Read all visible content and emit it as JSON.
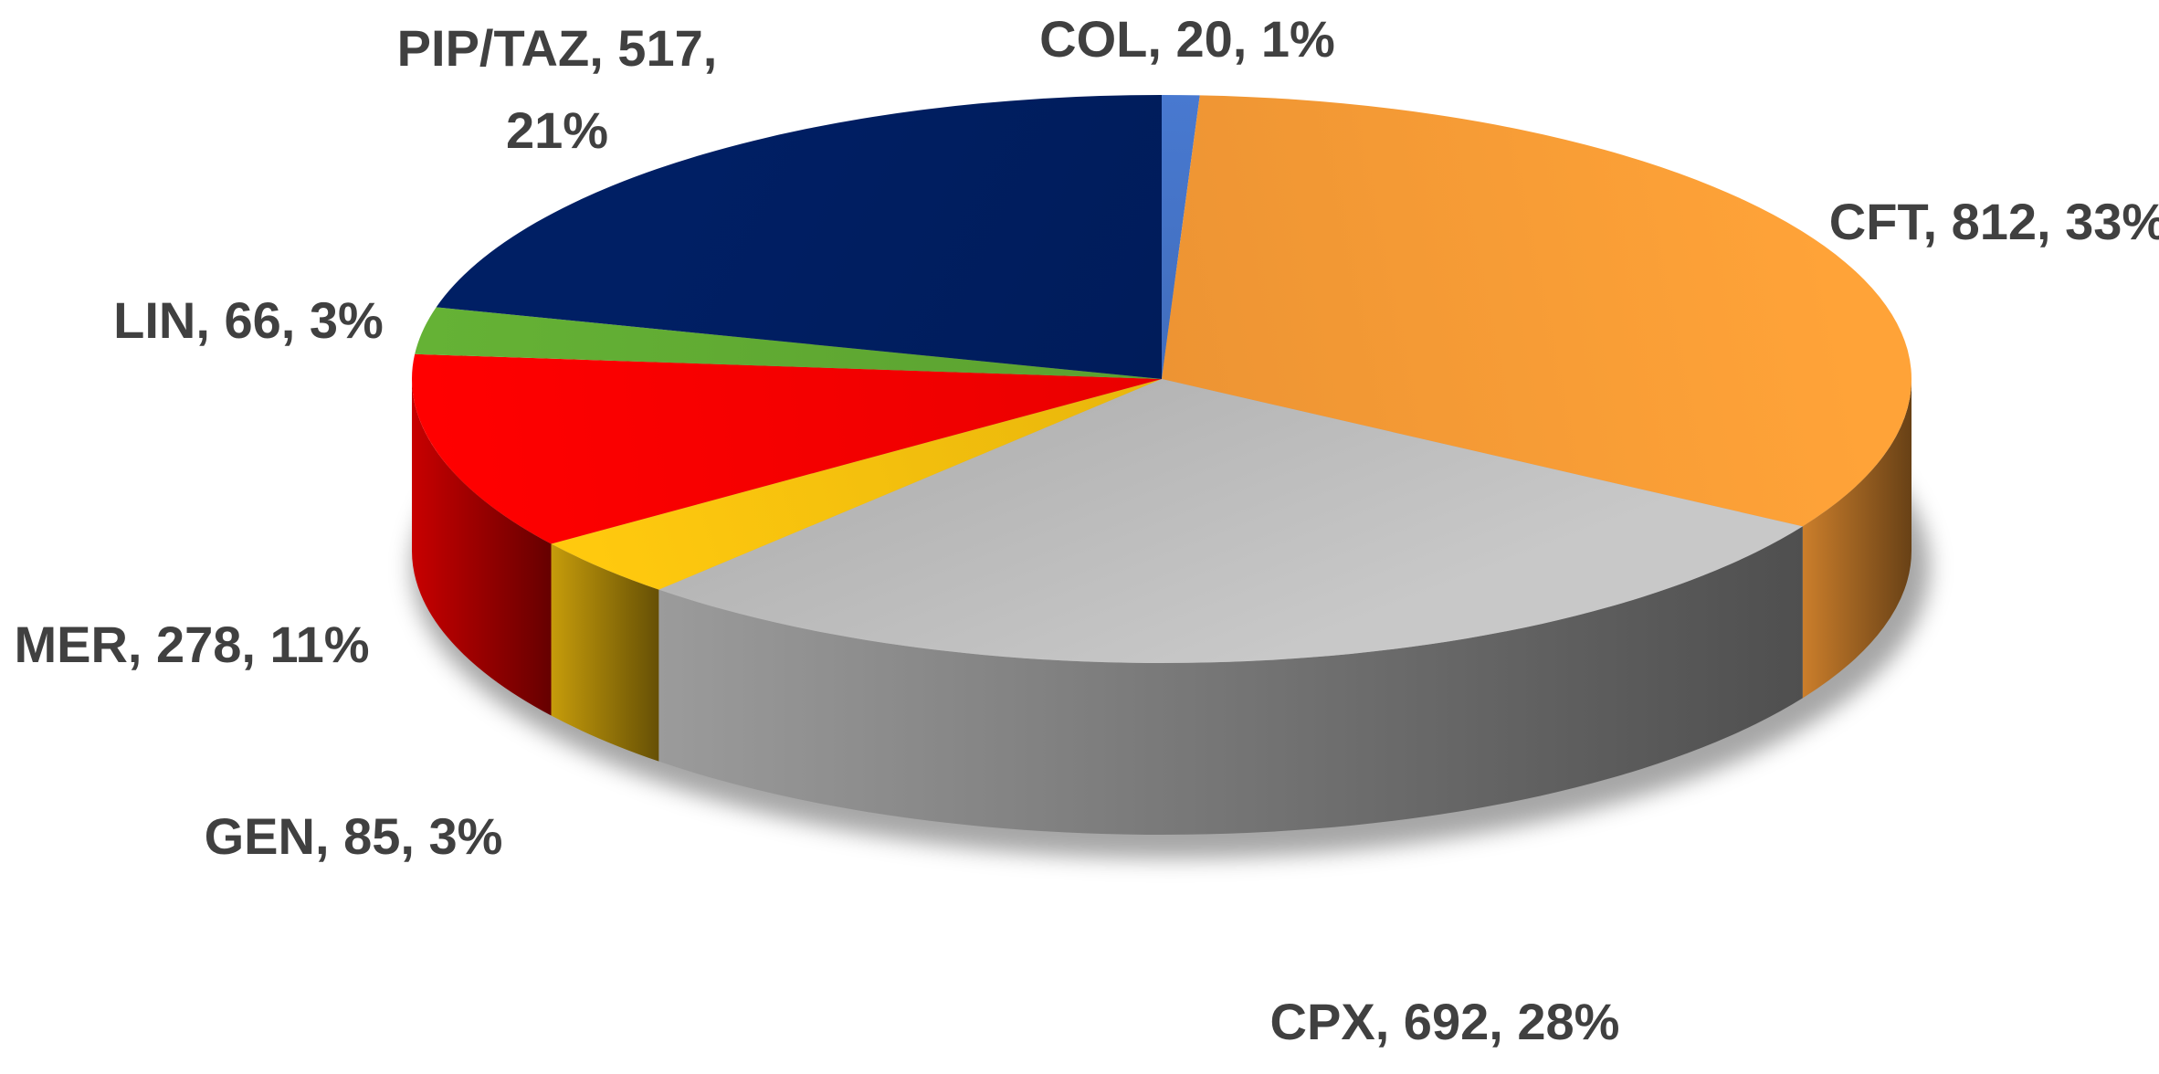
{
  "chart_data": {
    "type": "pie",
    "style": "3d",
    "start_angle_deg": 0,
    "direction": "clockwise",
    "slices": [
      {
        "label": "COL",
        "value": 20,
        "percent": "1%",
        "color": "#4472C4",
        "label_text": [
          "COL, 20, 1%"
        ]
      },
      {
        "label": "CFT",
        "value": 812,
        "percent": "33%",
        "color": "#F79A35",
        "label_text": [
          "CFT, 812, 33%"
        ]
      },
      {
        "label": "CPX",
        "value": 692,
        "percent": "28%",
        "color": "#BDBDBD",
        "label_text": [
          "CPX, 692, 28%"
        ]
      },
      {
        "label": "GEN",
        "value": 85,
        "percent": "3%",
        "color": "#F2BE0D",
        "label_text": [
          "GEN, 85, 3%"
        ]
      },
      {
        "label": "MER",
        "value": 278,
        "percent": "11%",
        "color": "#F40000",
        "label_text": [
          "MER, 278, 11%"
        ]
      },
      {
        "label": "LIN",
        "value": 66,
        "percent": "3%",
        "color": "#5FA832",
        "label_text": [
          "LIN, 66, 3%"
        ]
      },
      {
        "label": "PIP/TAZ",
        "value": 517,
        "percent": "21%",
        "color": "#001D5E",
        "label_text": [
          "PIP/TAZ, 517,",
          "21%"
        ]
      }
    ],
    "legend": "none",
    "title": ""
  }
}
